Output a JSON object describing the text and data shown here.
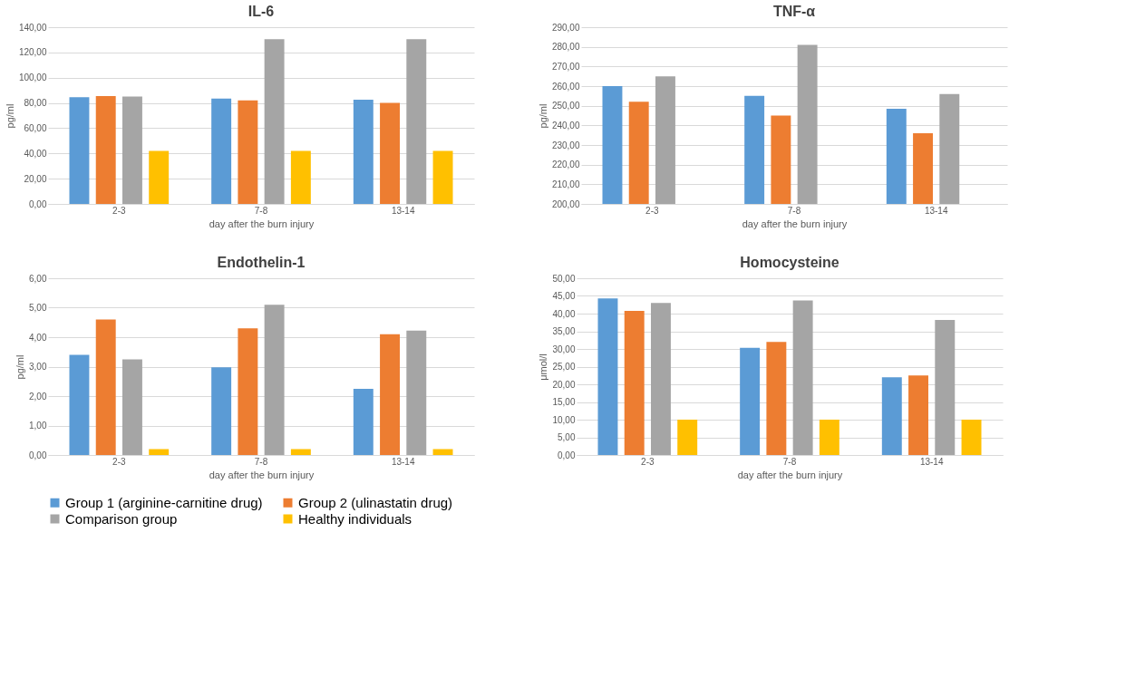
{
  "chart_data": [
    {
      "type": "bar",
      "title": "IL-6",
      "xlabel": "day after the burn injury",
      "ylabel": "pg/ml",
      "categories": [
        "2-3",
        "7-8",
        "13-14"
      ],
      "ylim": [
        0,
        140
      ],
      "yticks": [
        {
          "value": 0,
          "label": "0,00"
        },
        {
          "value": 20,
          "label": "20,00"
        },
        {
          "value": 40,
          "label": "40,00"
        },
        {
          "value": 60,
          "label": "60,00"
        },
        {
          "value": 80,
          "label": "80,00"
        },
        {
          "value": 100,
          "label": "100,00"
        },
        {
          "value": 120,
          "label": "120,00"
        },
        {
          "value": 140,
          "label": "140,00"
        }
      ],
      "grid": "y",
      "legend": "bottom",
      "series": [
        {
          "name": "Group 1 (arginine-carnitine drug)",
          "color": "#5b9bd5",
          "values": [
            84.5,
            83.5,
            82.5
          ]
        },
        {
          "name": "Group 2 (ulinastatin drug)",
          "color": "#ed7d31",
          "values": [
            85.5,
            82,
            80
          ]
        },
        {
          "name": "Comparison group",
          "color": "#a5a5a5",
          "values": [
            85,
            130.5,
            130.5
          ]
        },
        {
          "name": "Healthy individuals",
          "color": "#ffc000",
          "values": [
            42,
            42,
            42
          ]
        }
      ]
    },
    {
      "type": "bar",
      "title": "TNF-α",
      "xlabel": "day after the burn injury",
      "ylabel": "pg/ml",
      "categories": [
        "2-3",
        "7-8",
        "13-14"
      ],
      "ylim": [
        200,
        290
      ],
      "yticks": [
        {
          "value": 200,
          "label": "200,00"
        },
        {
          "value": 210,
          "label": "210,00"
        },
        {
          "value": 220,
          "label": "220,00"
        },
        {
          "value": 230,
          "label": "230,00"
        },
        {
          "value": 240,
          "label": "240,00"
        },
        {
          "value": 250,
          "label": "250,00"
        },
        {
          "value": 260,
          "label": "260,00"
        },
        {
          "value": 270,
          "label": "270,00"
        },
        {
          "value": 280,
          "label": "280,00"
        },
        {
          "value": 290,
          "label": "290,00"
        }
      ],
      "grid": "y",
      "legend": "bottom",
      "series": [
        {
          "name": "Group 1 (arginine-carnitine drug)",
          "color": "#5b9bd5",
          "values": [
            260,
            255,
            248.5
          ]
        },
        {
          "name": "Group 2 (ulinastatin drug)",
          "color": "#ed7d31",
          "values": [
            252,
            245,
            236
          ]
        },
        {
          "name": "Comparison group",
          "color": "#a5a5a5",
          "values": [
            265,
            281,
            256
          ]
        },
        {
          "name": "Healthy individuals",
          "color": "#ffc000",
          "values": [
            null,
            null,
            null
          ]
        }
      ]
    },
    {
      "type": "bar",
      "title": "Endothelin-1",
      "xlabel": "day after the burn injury",
      "ylabel": "pg/ml",
      "categories": [
        "2-3",
        "7-8",
        "13-14"
      ],
      "ylim": [
        0,
        6
      ],
      "yticks": [
        {
          "value": 0,
          "label": "0,00"
        },
        {
          "value": 1,
          "label": "1,00"
        },
        {
          "value": 2,
          "label": "2,00"
        },
        {
          "value": 3,
          "label": "3,00"
        },
        {
          "value": 4,
          "label": "4,00"
        },
        {
          "value": 5,
          "label": "5,00"
        },
        {
          "value": 6,
          "label": "6,00"
        }
      ],
      "grid": "y",
      "legend": "bottom",
      "series": [
        {
          "name": "Group 1 (arginine-carnitine drug)",
          "color": "#5b9bd5",
          "values": [
            3.4,
            2.98,
            2.25
          ]
        },
        {
          "name": "Group 2 (ulinastatin drug)",
          "color": "#ed7d31",
          "values": [
            4.6,
            4.3,
            4.1
          ]
        },
        {
          "name": "Comparison group",
          "color": "#a5a5a5",
          "values": [
            3.25,
            5.1,
            4.22
          ]
        },
        {
          "name": "Healthy individuals",
          "color": "#ffc000",
          "values": [
            0.2,
            0.2,
            0.2
          ]
        }
      ]
    },
    {
      "type": "bar",
      "title": "Homocysteine",
      "xlabel": "day after the burn injury",
      "ylabel": "μmol/l",
      "categories": [
        "2-3",
        "7-8",
        "13-14"
      ],
      "ylim": [
        0,
        50
      ],
      "yticks": [
        {
          "value": 0,
          "label": "0,00"
        },
        {
          "value": 5,
          "label": "5,00"
        },
        {
          "value": 10,
          "label": "10,00"
        },
        {
          "value": 15,
          "label": "15,00"
        },
        {
          "value": 20,
          "label": "20,00"
        },
        {
          "value": 25,
          "label": "25,00"
        },
        {
          "value": 30,
          "label": "30,00"
        },
        {
          "value": 35,
          "label": "35,00"
        },
        {
          "value": 40,
          "label": "40,00"
        },
        {
          "value": 45,
          "label": "45,00"
        },
        {
          "value": 50,
          "label": "50,00"
        }
      ],
      "grid": "y",
      "legend": "bottom",
      "series": [
        {
          "name": "Group 1 (arginine-carnitine drug)",
          "color": "#5b9bd5",
          "values": [
            44.3,
            30.3,
            22
          ]
        },
        {
          "name": "Group 2 (ulinastatin drug)",
          "color": "#ed7d31",
          "values": [
            40.8,
            32,
            22.5
          ]
        },
        {
          "name": "Comparison group",
          "color": "#a5a5a5",
          "values": [
            43,
            43.7,
            38.2
          ]
        },
        {
          "name": "Healthy individuals",
          "color": "#ffc000",
          "values": [
            10,
            10,
            10
          ]
        }
      ]
    }
  ]
}
